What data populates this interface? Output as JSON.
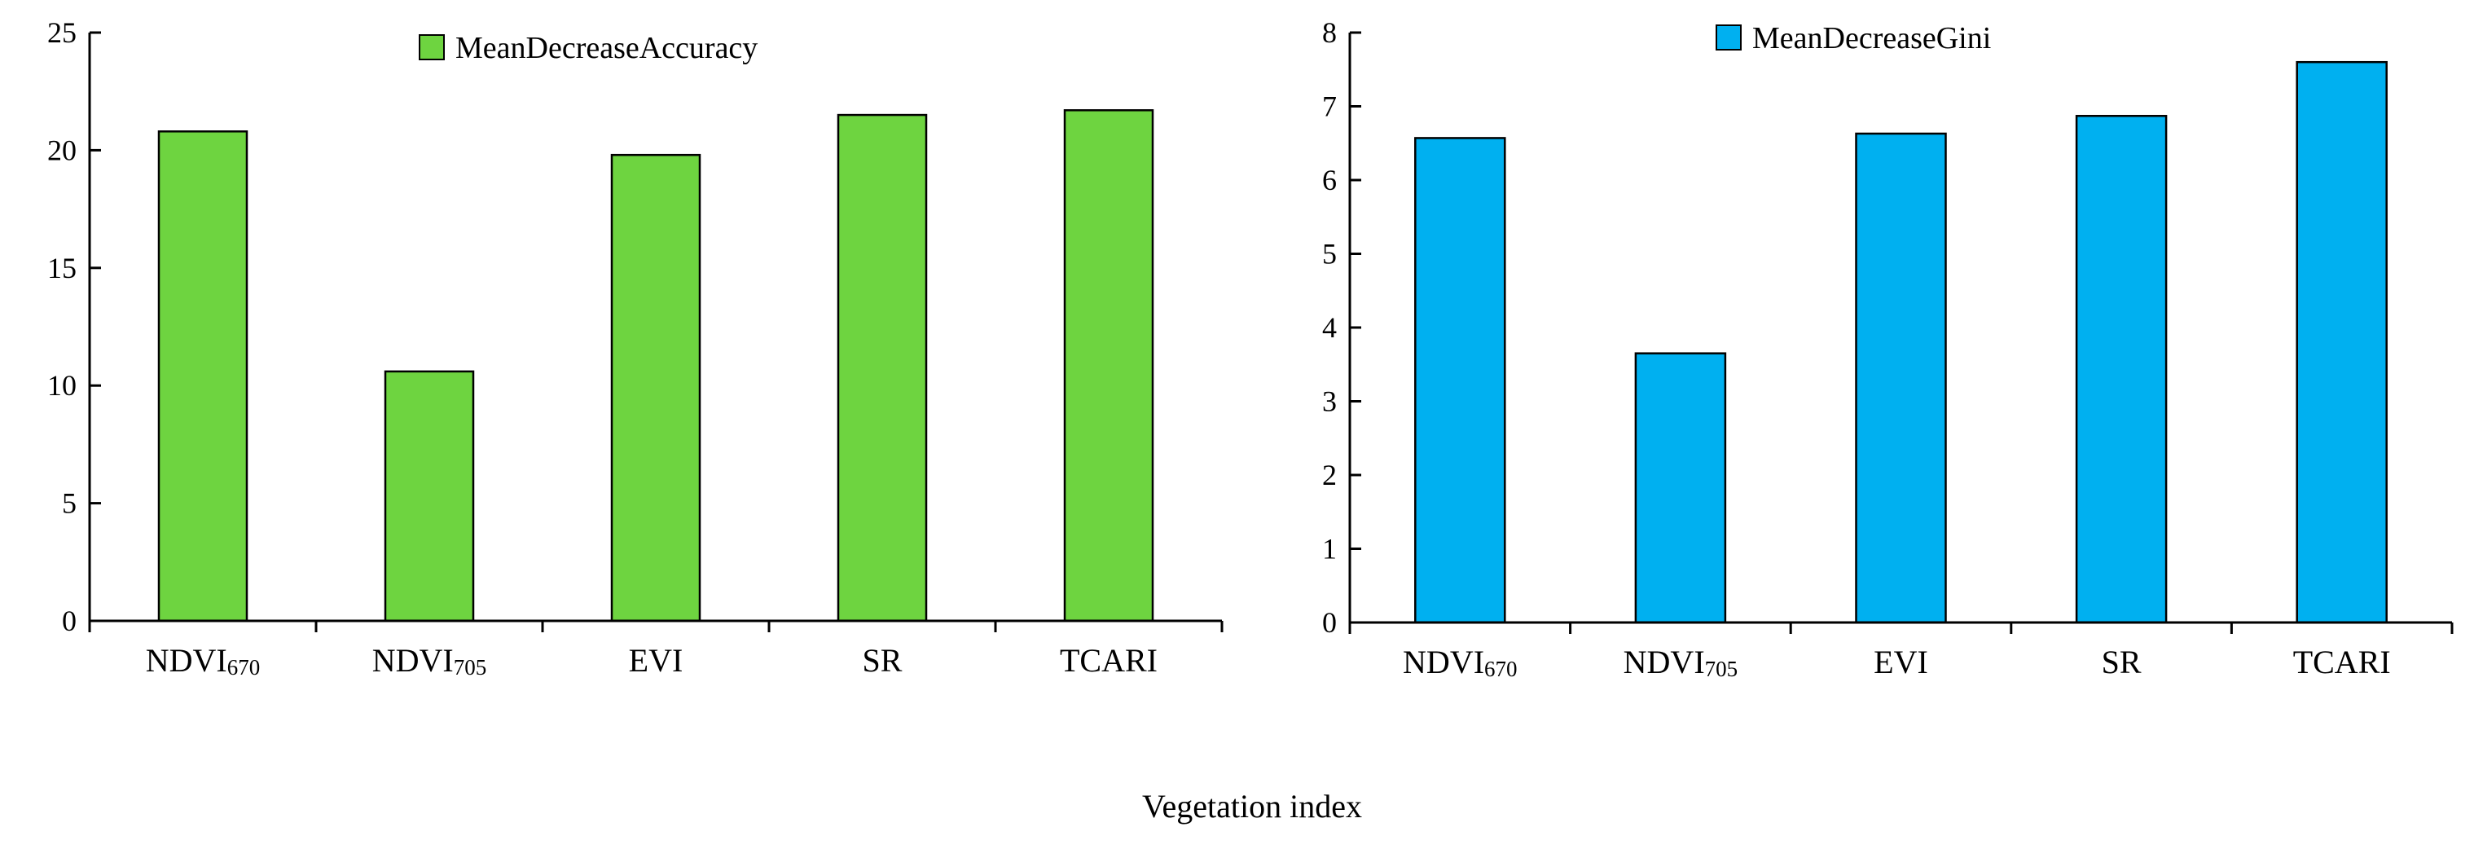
{
  "chart_data": [
    {
      "type": "bar",
      "categories": [
        "NDVI670",
        "NDVI705",
        "EVI",
        "SR",
        "TCARI"
      ],
      "category_labels": [
        {
          "base": "NDVI",
          "sub": "670"
        },
        {
          "base": "NDVI",
          "sub": "705"
        },
        {
          "base": "EVI",
          "sub": ""
        },
        {
          "base": "SR",
          "sub": ""
        },
        {
          "base": "TCARI",
          "sub": ""
        }
      ],
      "series": [
        {
          "name": "MeanDecreaseAccuracy",
          "values": [
            20.8,
            10.6,
            19.8,
            21.5,
            21.7
          ]
        }
      ],
      "ylim": [
        0,
        25
      ],
      "yticks": [
        "0",
        "5",
        "10",
        "15",
        "20",
        "25"
      ],
      "color": "#6ed440",
      "legend": "MeanDecreaseAccuracy",
      "legend_position": "top-center"
    },
    {
      "type": "bar",
      "categories": [
        "NDVI670",
        "NDVI705",
        "EVI",
        "SR",
        "TCARI"
      ],
      "category_labels": [
        {
          "base": "NDVI",
          "sub": "670"
        },
        {
          "base": "NDVI",
          "sub": "705"
        },
        {
          "base": "EVI",
          "sub": ""
        },
        {
          "base": "SR",
          "sub": ""
        },
        {
          "base": "TCARI",
          "sub": ""
        }
      ],
      "series": [
        {
          "name": "MeanDecreaseGini",
          "values": [
            6.57,
            3.65,
            6.63,
            6.87,
            7.6
          ]
        }
      ],
      "ylim": [
        0,
        8
      ],
      "yticks": [
        "0",
        "1",
        "2",
        "3",
        "4",
        "5",
        "6",
        "7",
        "8"
      ],
      "color": "#00b0f0",
      "legend": "MeanDecreaseGini",
      "legend_position": "top-left"
    }
  ],
  "xlabel": "Vegetation index"
}
